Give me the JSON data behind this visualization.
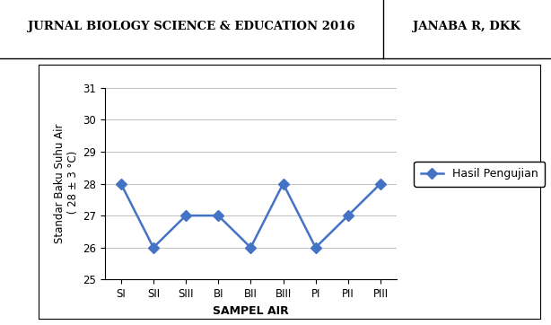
{
  "header_left": "JURNAL BIOLOGY SCIENCE & EDUCATION 2016",
  "header_right": "JANABA R, DKK",
  "categories": [
    "SI",
    "SII",
    "SIII",
    "BI",
    "BII",
    "BIII",
    "PI",
    "PII",
    "PIII"
  ],
  "values": [
    28.0,
    26.0,
    27.0,
    27.0,
    26.0,
    28.0,
    26.0,
    27.0,
    28.0
  ],
  "ylabel": "Standar Baku Suhu Air\n ( 28 ± 3 °C)",
  "xlabel": "SAMPEL AIR",
  "legend_label": "Hasil Pengujian",
  "ylim": [
    25,
    31
  ],
  "yticks": [
    25,
    26,
    27,
    28,
    29,
    30,
    31
  ],
  "line_color": "#4472C4",
  "marker": "D",
  "marker_size": 6,
  "line_width": 1.8,
  "bg_color": "#FFFFFF",
  "grid_color": "#C0C0C0",
  "header_fontsize": 9.5,
  "axis_label_fontsize": 9,
  "tick_fontsize": 8.5,
  "legend_fontsize": 9,
  "header_split": 0.695
}
